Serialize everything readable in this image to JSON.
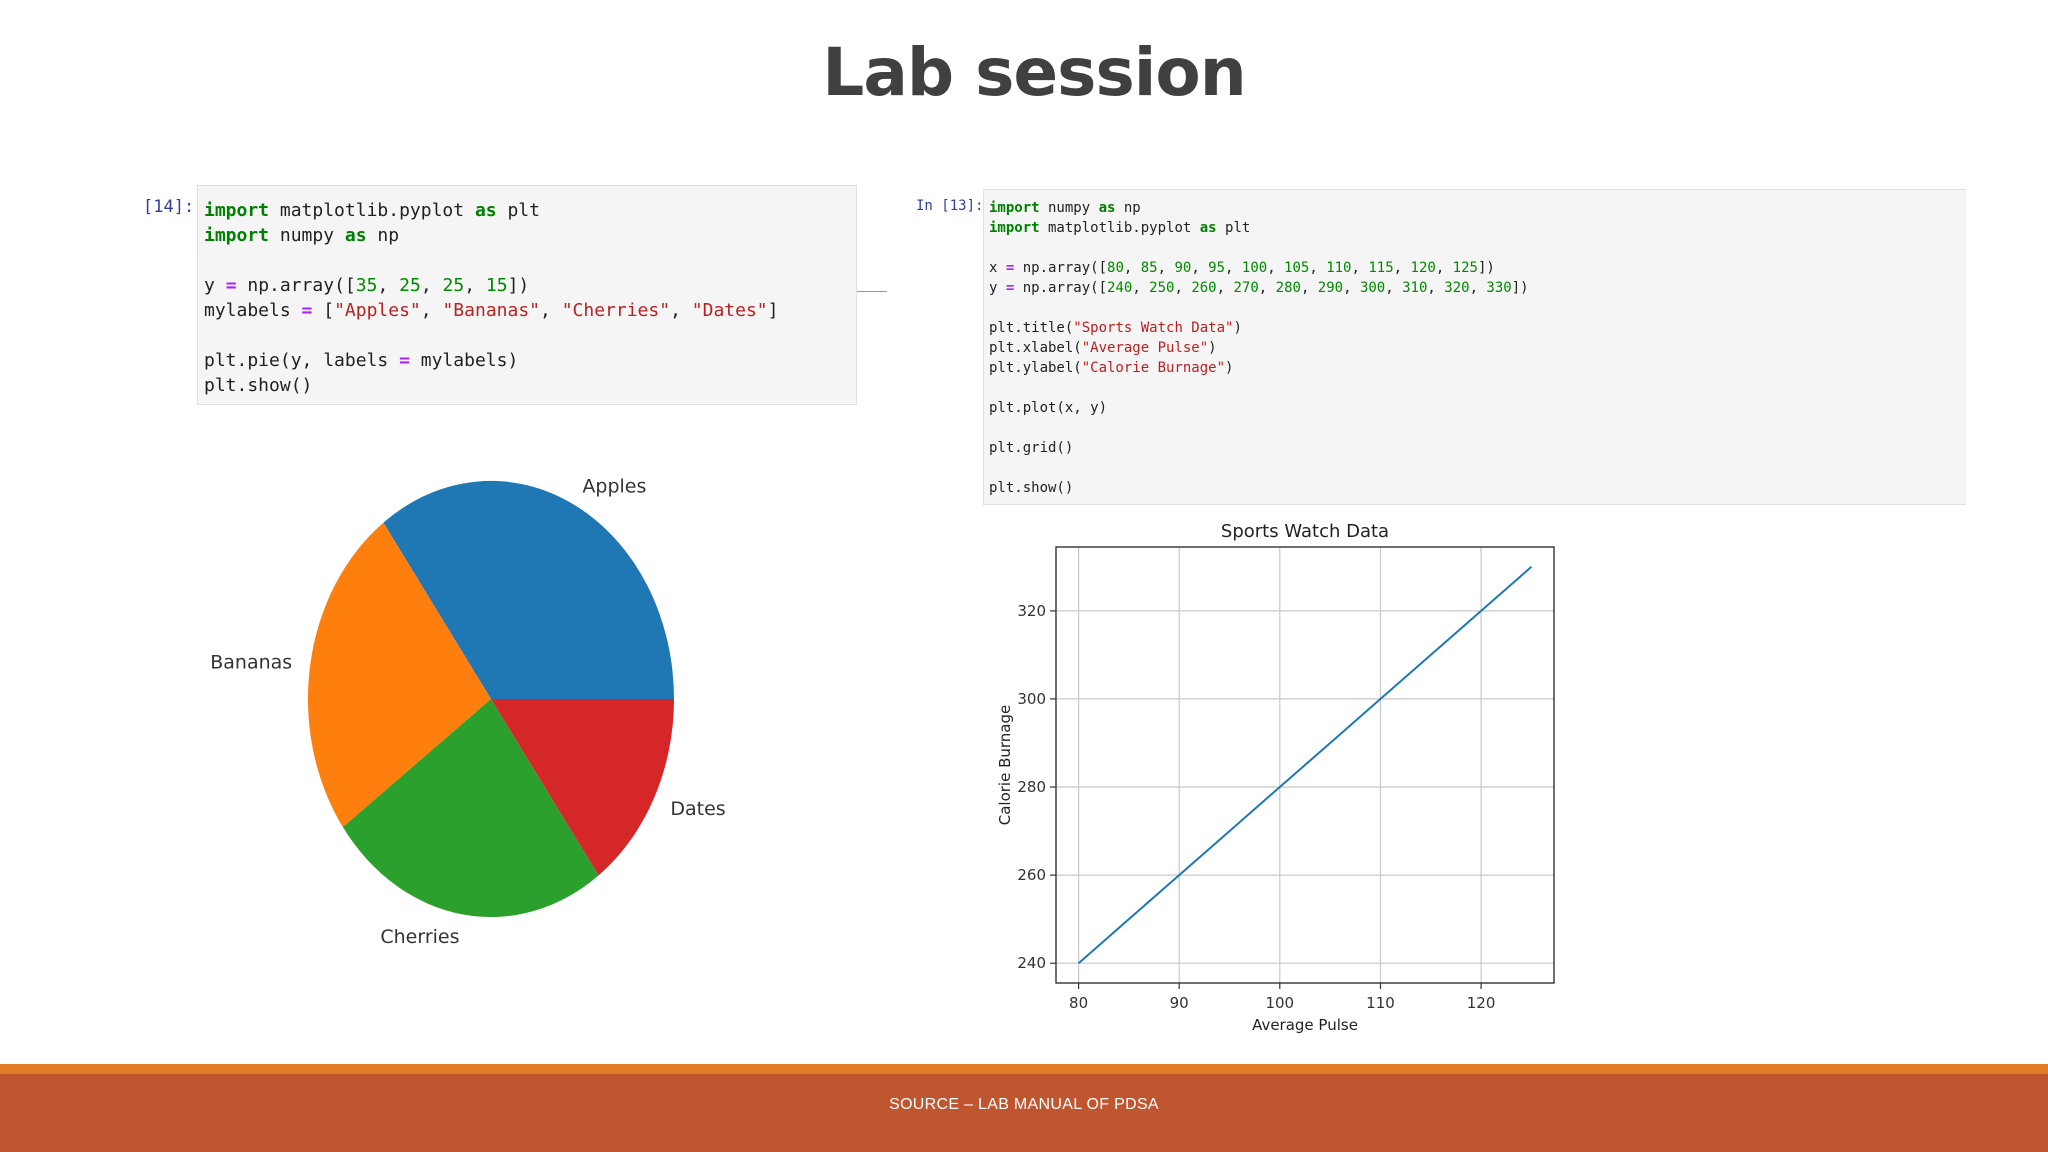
{
  "slide": {
    "title": "Lab session",
    "footer": "SOURCE – LAB MANUAL OF PDSA"
  },
  "cells": {
    "left": {
      "prompt": "[14]:",
      "lines": [
        [
          [
            "kw",
            "import"
          ],
          [
            "t",
            " matplotlib.pyplot "
          ],
          [
            "kw",
            "as"
          ],
          [
            "t",
            " plt"
          ]
        ],
        [
          [
            "kw",
            "import"
          ],
          [
            "t",
            " numpy "
          ],
          [
            "kw",
            "as"
          ],
          [
            "t",
            " np"
          ]
        ],
        [],
        [
          [
            "t",
            "y "
          ],
          [
            "op",
            "="
          ],
          [
            "t",
            " np.array(["
          ],
          [
            "num",
            "35"
          ],
          [
            "t",
            ", "
          ],
          [
            "num",
            "25"
          ],
          [
            "t",
            ", "
          ],
          [
            "num",
            "25"
          ],
          [
            "t",
            ", "
          ],
          [
            "num",
            "15"
          ],
          [
            "t",
            "])"
          ]
        ],
        [
          [
            "t",
            "mylabels "
          ],
          [
            "op",
            "="
          ],
          [
            "t",
            " ["
          ],
          [
            "str",
            "\"Apples\""
          ],
          [
            "t",
            ", "
          ],
          [
            "str",
            "\"Bananas\""
          ],
          [
            "t",
            ", "
          ],
          [
            "str",
            "\"Cherries\""
          ],
          [
            "t",
            ", "
          ],
          [
            "str",
            "\"Dates\""
          ],
          [
            "t",
            "]"
          ]
        ],
        [],
        [
          [
            "t",
            "plt.pie(y, labels "
          ],
          [
            "op",
            "="
          ],
          [
            "t",
            " mylabels)"
          ]
        ],
        [
          [
            "t",
            "plt.show()"
          ]
        ]
      ]
    },
    "right": {
      "prompt": "In [13]:",
      "lines": [
        [
          [
            "kw",
            "import"
          ],
          [
            "t",
            " numpy "
          ],
          [
            "kw",
            "as"
          ],
          [
            "t",
            " np"
          ]
        ],
        [
          [
            "kw",
            "import"
          ],
          [
            "t",
            " matplotlib.pyplot "
          ],
          [
            "kw",
            "as"
          ],
          [
            "t",
            " plt"
          ]
        ],
        [],
        [
          [
            "t",
            "x "
          ],
          [
            "op",
            "="
          ],
          [
            "t",
            " np.array(["
          ],
          [
            "num",
            "80"
          ],
          [
            "t",
            ", "
          ],
          [
            "num",
            "85"
          ],
          [
            "t",
            ", "
          ],
          [
            "num",
            "90"
          ],
          [
            "t",
            ", "
          ],
          [
            "num",
            "95"
          ],
          [
            "t",
            ", "
          ],
          [
            "num",
            "100"
          ],
          [
            "t",
            ", "
          ],
          [
            "num",
            "105"
          ],
          [
            "t",
            ", "
          ],
          [
            "num",
            "110"
          ],
          [
            "t",
            ", "
          ],
          [
            "num",
            "115"
          ],
          [
            "t",
            ", "
          ],
          [
            "num",
            "120"
          ],
          [
            "t",
            ", "
          ],
          [
            "num",
            "125"
          ],
          [
            "t",
            "])"
          ]
        ],
        [
          [
            "t",
            "y "
          ],
          [
            "op",
            "="
          ],
          [
            "t",
            " np.array(["
          ],
          [
            "num",
            "240"
          ],
          [
            "t",
            ", "
          ],
          [
            "num",
            "250"
          ],
          [
            "t",
            ", "
          ],
          [
            "num",
            "260"
          ],
          [
            "t",
            ", "
          ],
          [
            "num",
            "270"
          ],
          [
            "t",
            ", "
          ],
          [
            "num",
            "280"
          ],
          [
            "t",
            ", "
          ],
          [
            "num",
            "290"
          ],
          [
            "t",
            ", "
          ],
          [
            "num",
            "300"
          ],
          [
            "t",
            ", "
          ],
          [
            "num",
            "310"
          ],
          [
            "t",
            ", "
          ],
          [
            "num",
            "320"
          ],
          [
            "t",
            ", "
          ],
          [
            "num",
            "330"
          ],
          [
            "t",
            "])"
          ]
        ],
        [],
        [
          [
            "t",
            "plt.title("
          ],
          [
            "str",
            "\"Sports Watch Data\""
          ],
          [
            "t",
            ")"
          ]
        ],
        [
          [
            "t",
            "plt.xlabel("
          ],
          [
            "str",
            "\"Average Pulse\""
          ],
          [
            "t",
            ")"
          ]
        ],
        [
          [
            "t",
            "plt.ylabel("
          ],
          [
            "str",
            "\"Calorie Burnage\""
          ],
          [
            "t",
            ")"
          ]
        ],
        [],
        [
          [
            "t",
            "plt.plot(x, y)"
          ]
        ],
        [],
        [
          [
            "t",
            "plt.grid()"
          ]
        ],
        [],
        [
          [
            "t",
            "plt.show()"
          ]
        ]
      ]
    }
  },
  "chart_data": [
    {
      "type": "pie",
      "values": [
        35,
        25,
        25,
        15
      ],
      "labels": [
        "Apples",
        "Bananas",
        "Cherries",
        "Dates"
      ],
      "colors": [
        "#1f77b4",
        "#ff7f0e",
        "#2ca02c",
        "#d62728"
      ],
      "title": ""
    },
    {
      "type": "line",
      "title": "Sports Watch Data",
      "xlabel": "Average Pulse",
      "ylabel": "Calorie Burnage",
      "x": [
        80,
        85,
        90,
        95,
        100,
        105,
        110,
        115,
        120,
        125
      ],
      "series": [
        {
          "values": [
            240,
            250,
            260,
            270,
            280,
            290,
            300,
            310,
            320,
            330
          ],
          "color": "#1f77b4"
        }
      ],
      "xticks": [
        80,
        90,
        100,
        110,
        120
      ],
      "yticks": [
        240,
        260,
        280,
        300,
        320
      ],
      "xlim": [
        77.75,
        127.25
      ],
      "ylim": [
        235.5,
        334.5
      ],
      "grid": true
    }
  ]
}
